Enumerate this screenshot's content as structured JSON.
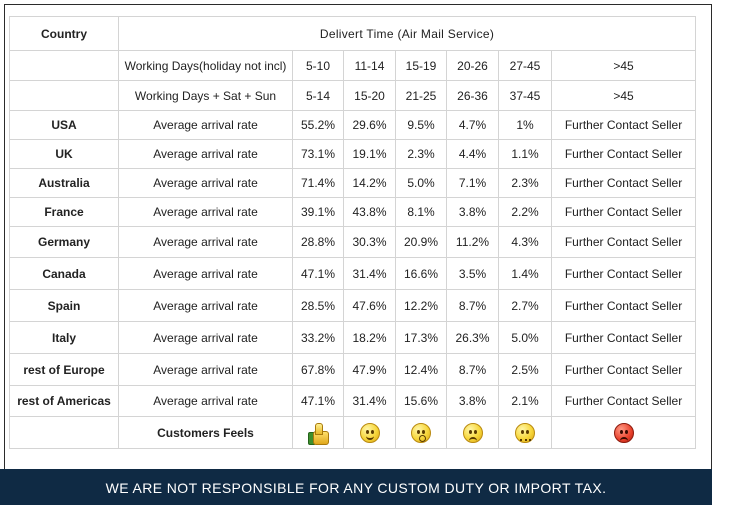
{
  "header": {
    "country_label": "Country",
    "title": "Delivert Time (Air Mail Service)"
  },
  "working_days_rows": [
    {
      "label": "Working Days(holiday not incl)",
      "ranges": [
        "5-10",
        "11-14",
        "15-19",
        "20-26",
        "27-45",
        ">45"
      ]
    },
    {
      "label": "Working Days + Sat + Sun",
      "ranges": [
        "5-14",
        "15-20",
        "21-25",
        "26-36",
        "37-45",
        ">45"
      ]
    }
  ],
  "rows": [
    {
      "country": "USA",
      "label": "Average arrival rate",
      "values": [
        "55.2%",
        "29.6%",
        "9.5%",
        "4.7%",
        "1%"
      ],
      "last": "Further Contact Seller"
    },
    {
      "country": "UK",
      "label": "Average arrival rate",
      "values": [
        "73.1%",
        "19.1%",
        "2.3%",
        "4.4%",
        "1.1%"
      ],
      "last": "Further Contact Seller"
    },
    {
      "country": "Australia",
      "label": "Average arrival rate",
      "values": [
        "71.4%",
        "14.2%",
        "5.0%",
        "7.1%",
        "2.3%"
      ],
      "last": "Further Contact Seller"
    },
    {
      "country": "France",
      "label": "Average arrival rate",
      "values": [
        "39.1%",
        "43.8%",
        "8.1%",
        "3.8%",
        "2.2%"
      ],
      "last": "Further Contact Seller"
    },
    {
      "country": "Germany",
      "label": "Average arrival rate",
      "values": [
        "28.8%",
        "30.3%",
        "20.9%",
        "11.2%",
        "4.3%"
      ],
      "last": "Further Contact Seller"
    },
    {
      "country": "Canada",
      "label": "Average arrival rate",
      "values": [
        "47.1%",
        "31.4%",
        "16.6%",
        "3.5%",
        "1.4%"
      ],
      "last": "Further Contact Seller"
    },
    {
      "country": "Spain",
      "label": "Average arrival rate",
      "values": [
        "28.5%",
        "47.6%",
        "12.2%",
        "8.7%",
        "2.7%"
      ],
      "last": "Further Contact Seller"
    },
    {
      "country": "Italy",
      "label": "Average arrival rate",
      "values": [
        "33.2%",
        "18.2%",
        "17.3%",
        "26.3%",
        "5.0%"
      ],
      "last": "Further Contact Seller"
    },
    {
      "country": "rest of Europe",
      "label": "Average arrival rate",
      "values": [
        "67.8%",
        "47.9%",
        "12.4%",
        "8.7%",
        "2.5%"
      ],
      "last": "Further Contact Seller"
    },
    {
      "country": "rest of Americas",
      "label": "Average arrival rate",
      "values": [
        "47.1%",
        "31.4%",
        "15.6%",
        "3.8%",
        "2.1%"
      ],
      "last": "Further Contact Seller"
    }
  ],
  "feels": {
    "label": "Customers Feels",
    "icons": [
      "thumbs-up-icon",
      "smiley-happy-icon",
      "smiley-surprised-icon",
      "smiley-sad-icon",
      "smiley-upset-icon",
      "angry-face-icon"
    ]
  },
  "footer": {
    "notice": "WE ARE NOT RESPONSIBLE FOR ANY CUSTOM DUTY OR IMPORT TAX."
  },
  "colors": {
    "footer_bg": "#0f2a44",
    "grid_line": "#d4d4d4",
    "face_yellow": "#f7d63a",
    "face_red": "#e8402a"
  }
}
